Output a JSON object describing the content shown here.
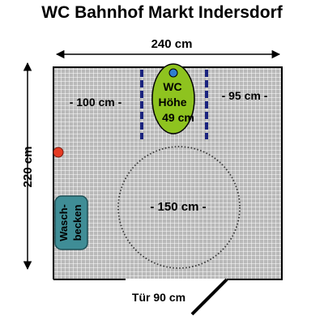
{
  "title": "WC Bahnhof Markt Indersdorf",
  "dimensions": {
    "width_label": "240 cm",
    "height_label": "220 cm",
    "left_clearance_label": "- 100 cm -",
    "right_clearance_label": "- 95 cm -",
    "turning_circle_label": "- 150 cm -",
    "door_label": "Tür 90 cm"
  },
  "toilet": {
    "line1": "WC",
    "line2": "Höhe",
    "line3": "49 cm"
  },
  "sink": {
    "line1": "Wasch-",
    "line2": "becken"
  },
  "colors": {
    "floor": "#b9b9b9",
    "grid": "#ffffff",
    "wall": "#000000",
    "toilet": "#8ec31f",
    "flush_button": "#2f7fd0",
    "grab_bar": "#1a237e",
    "sink": "#3f8d96",
    "alarm": "#e53a22"
  }
}
